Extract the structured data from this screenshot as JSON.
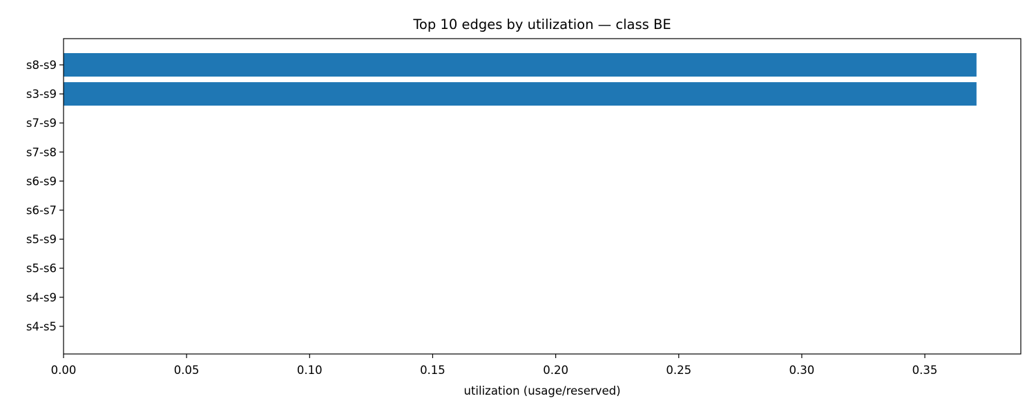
{
  "chart_data": {
    "type": "bar",
    "orientation": "horizontal",
    "title": "Top 10 edges by utilization — class BE",
    "xlabel": "utilization (usage/reserved)",
    "ylabel": "",
    "categories": [
      "s8-s9",
      "s3-s9",
      "s7-s9",
      "s7-s8",
      "s6-s9",
      "s6-s7",
      "s5-s9",
      "s5-s6",
      "s4-s9",
      "s4-s5"
    ],
    "values": [
      0.371,
      0.371,
      0,
      0,
      0,
      0,
      0,
      0,
      0,
      0
    ],
    "xlim": [
      0,
      0.389
    ],
    "xticks": [
      "0.00",
      "0.05",
      "0.10",
      "0.15",
      "0.20",
      "0.25",
      "0.30",
      "0.35"
    ],
    "grid": false,
    "legend": "none",
    "bar_color": "#1f77b4"
  }
}
